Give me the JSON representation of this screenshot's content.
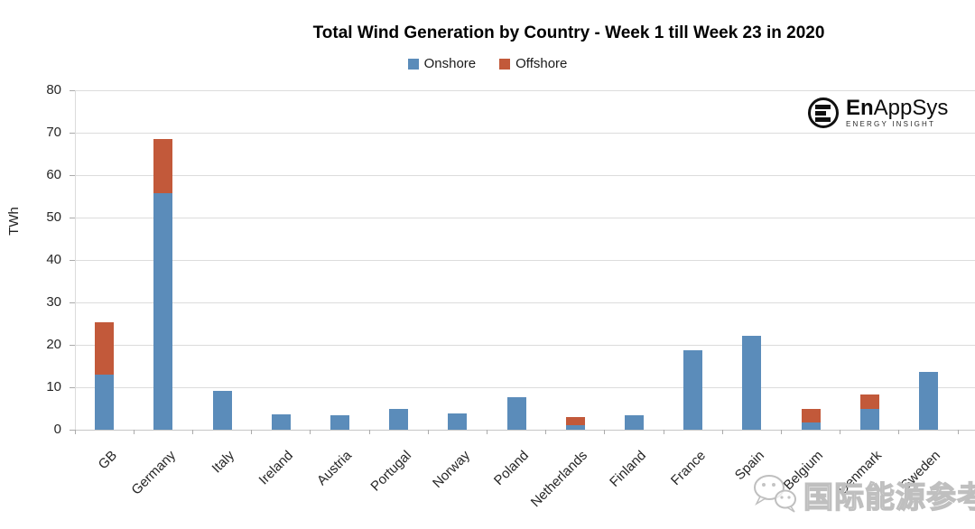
{
  "chart_data": {
    "type": "bar",
    "stacked": true,
    "title": "Total Wind Generation by Country - Week 1 till Week 23 in 2020",
    "ylabel": "TWh",
    "xlabel": "",
    "ylim": [
      0,
      80
    ],
    "ytick_step": 10,
    "yticks": [
      0,
      10,
      20,
      30,
      40,
      50,
      60,
      70,
      80
    ],
    "grid": true,
    "legend_position": "top-center",
    "categories": [
      "GB",
      "Germany",
      "Italy",
      "Ireland",
      "Austria",
      "Portugal",
      "Norway",
      "Poland",
      "Netherlands",
      "Finland",
      "France",
      "Spain",
      "Belgium",
      "Denmark",
      "Sweden"
    ],
    "series": [
      {
        "name": "Onshore",
        "color": "#5b8cba",
        "values": [
          13.0,
          55.7,
          9.2,
          3.6,
          3.4,
          4.8,
          3.8,
          7.7,
          1.1,
          3.5,
          18.8,
          22.2,
          1.8,
          5.0,
          13.7
        ]
      },
      {
        "name": "Offshore",
        "color": "#c2593a",
        "values": [
          12.4,
          12.8,
          0,
          0,
          0,
          0,
          0,
          0,
          1.9,
          0,
          0,
          0,
          3.2,
          3.2,
          0
        ]
      }
    ],
    "colors": {
      "gridline": "#dcdcdc",
      "axis_text": "#262626"
    }
  },
  "branding": {
    "logo_bold": "En",
    "logo_rest": "AppSys",
    "logo_sub": "ENERGY INSIGHT"
  },
  "watermark": {
    "text": "国际能源参考"
  }
}
